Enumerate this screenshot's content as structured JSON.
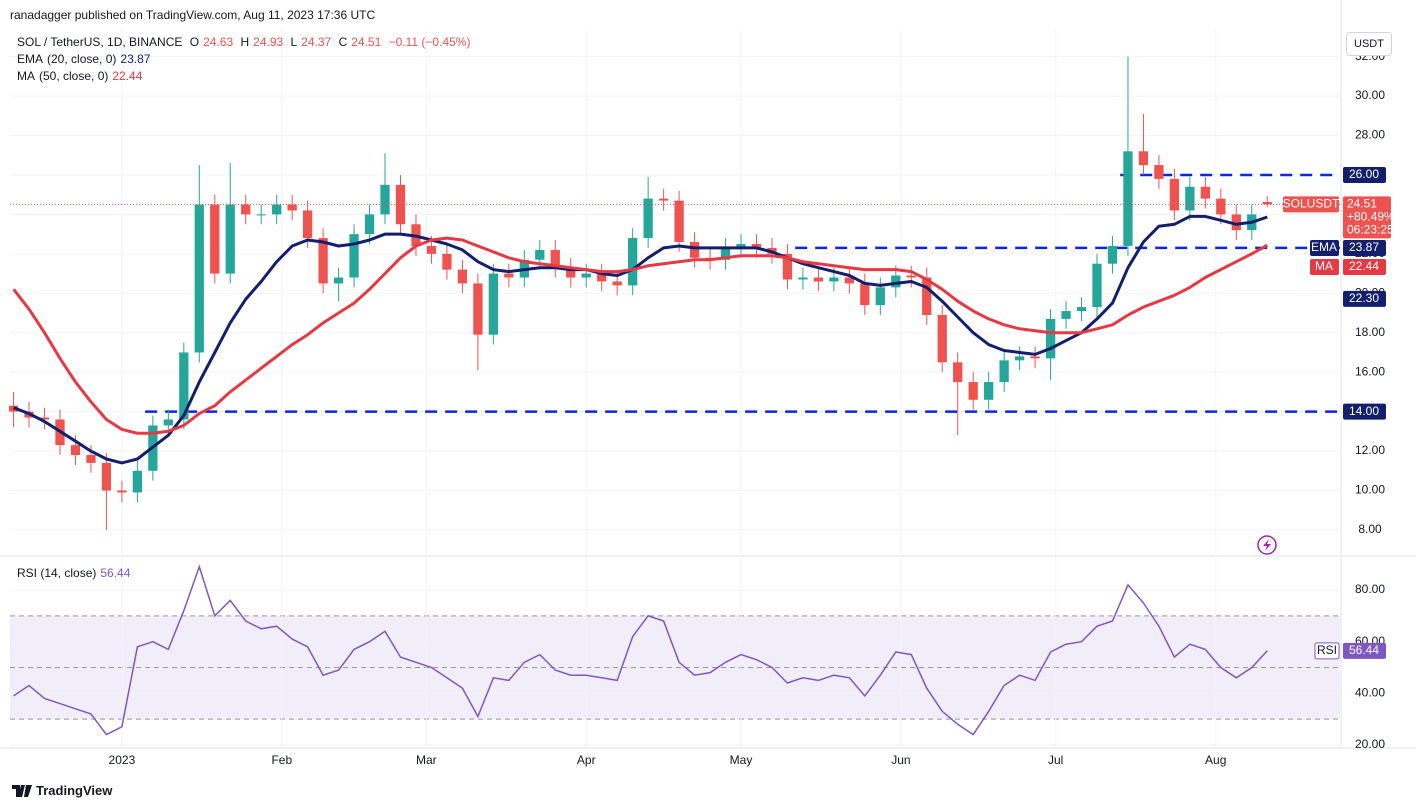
{
  "header": {
    "publisher": "ranadagger published on TradingView.com, Aug 11, 2023 17:36 UTC",
    "currency": "USDT"
  },
  "footer": {
    "brand": "TradingView"
  },
  "chart_data": [
    {
      "type": "candlestick",
      "title": "SOL / TetherUS, 1D, BINANCE",
      "ohlc_labels": [
        "O",
        "H",
        "L",
        "C"
      ],
      "change": "−0.11 (−0.45%)",
      "symbol_tag": "SOLUSDT",
      "pct_change": "+80.49%",
      "countdown": "06:23:25",
      "up_color": "#26a69a",
      "down_color": "#ef5350",
      "open": [
        14.3,
        14.0,
        13.7,
        13.6,
        12.3,
        11.8,
        11.4,
        10.0,
        9.9,
        11.0,
        13.3,
        13.6,
        17.0,
        24.5,
        21.0,
        24.5,
        24.0,
        24.0,
        24.5,
        24.2,
        22.8,
        20.5,
        20.8,
        23.0,
        24.0,
        25.5,
        23.5,
        22.4,
        22.0,
        21.2,
        20.5,
        17.9,
        21.0,
        20.8,
        21.7,
        22.2,
        21.3,
        20.8,
        21.0,
        20.6,
        20.4,
        22.8,
        24.8,
        24.7,
        22.6,
        21.8,
        21.7,
        22.3,
        22.5,
        22.3,
        22.0,
        20.7,
        20.8,
        20.6,
        20.8,
        20.5,
        19.4,
        20.3,
        20.9,
        20.8,
        18.9,
        16.5,
        15.5,
        14.6,
        15.5,
        16.6,
        16.8,
        16.7,
        18.7,
        19.1,
        19.3,
        21.5,
        22.4,
        27.2,
        26.5,
        25.8,
        24.2,
        25.4,
        24.8,
        24.0,
        23.2,
        24.63
      ],
      "high": [
        15.0,
        14.5,
        14.2,
        14.1,
        12.8,
        12.3,
        11.9,
        10.5,
        11.5,
        13.8,
        14.1,
        17.5,
        26.5,
        25.0,
        26.6,
        25.0,
        24.5,
        25.0,
        25.0,
        24.7,
        23.3,
        21.3,
        23.5,
        24.5,
        27.1,
        26.0,
        24.0,
        22.9,
        22.5,
        21.7,
        21.0,
        21.5,
        21.5,
        22.2,
        22.7,
        22.7,
        21.8,
        21.5,
        21.5,
        21.1,
        23.3,
        25.9,
        25.3,
        25.2,
        23.1,
        22.3,
        22.8,
        23.0,
        23.0,
        22.8,
        22.5,
        21.3,
        21.3,
        21.3,
        21.3,
        21.0,
        20.8,
        21.4,
        21.4,
        21.3,
        19.4,
        17.0,
        16.0,
        16.0,
        17.1,
        17.3,
        17.3,
        19.2,
        19.6,
        19.8,
        22.0,
        22.9,
        32.0,
        29.1,
        27.0,
        26.3,
        25.9,
        25.9,
        25.3,
        24.5,
        24.5,
        24.93
      ],
      "low": [
        13.2,
        13.2,
        13.1,
        11.8,
        11.3,
        10.9,
        8.0,
        9.4,
        9.4,
        10.5,
        12.8,
        13.1,
        16.5,
        20.5,
        20.5,
        23.5,
        23.5,
        23.5,
        23.7,
        22.3,
        20.0,
        19.6,
        20.3,
        22.5,
        23.5,
        23.0,
        21.9,
        21.5,
        20.7,
        20.0,
        16.1,
        17.4,
        20.3,
        20.3,
        21.2,
        20.8,
        20.3,
        20.3,
        20.1,
        19.9,
        19.9,
        22.3,
        24.2,
        22.1,
        21.3,
        21.2,
        21.2,
        21.8,
        21.8,
        21.5,
        20.2,
        20.2,
        20.1,
        20.1,
        20.0,
        18.9,
        18.9,
        19.8,
        20.3,
        18.4,
        16.0,
        12.8,
        14.1,
        14.1,
        15.0,
        16.1,
        16.2,
        15.6,
        18.2,
        18.6,
        18.8,
        21.0,
        21.9,
        26.0,
        25.3,
        23.7,
        23.7,
        24.3,
        23.5,
        22.7,
        22.7,
        24.37
      ],
      "close": [
        14.0,
        13.7,
        13.6,
        12.3,
        11.8,
        11.4,
        10.0,
        9.9,
        11.0,
        13.3,
        13.6,
        17.0,
        24.5,
        21.0,
        24.5,
        24.0,
        24.0,
        24.5,
        24.2,
        22.8,
        20.5,
        20.8,
        23.0,
        24.0,
        25.5,
        23.5,
        22.4,
        22.0,
        21.2,
        20.5,
        17.9,
        21.0,
        20.8,
        21.7,
        22.2,
        21.3,
        20.8,
        21.0,
        20.6,
        20.4,
        22.8,
        24.8,
        24.7,
        22.6,
        21.8,
        21.7,
        22.3,
        22.5,
        22.3,
        22.0,
        20.7,
        20.8,
        20.6,
        20.8,
        20.5,
        19.4,
        20.3,
        20.9,
        20.8,
        18.9,
        16.5,
        15.5,
        14.6,
        15.5,
        16.6,
        16.8,
        16.7,
        18.7,
        19.1,
        19.3,
        21.5,
        22.4,
        27.2,
        26.5,
        25.8,
        24.2,
        25.4,
        24.8,
        24.0,
        23.2,
        24.0,
        24.51
      ],
      "overlays": [
        {
          "name": "EMA",
          "params": "(20, close, 0)",
          "color": "#131f6b",
          "values": [
            14.2,
            13.9,
            13.5,
            13.0,
            12.5,
            12.0,
            11.6,
            11.4,
            11.6,
            12.2,
            12.8,
            13.8,
            15.5,
            17.0,
            18.5,
            19.7,
            20.6,
            21.6,
            22.4,
            22.7,
            22.6,
            22.4,
            22.5,
            22.7,
            23.0,
            23.0,
            22.9,
            22.7,
            22.5,
            22.2,
            21.6,
            21.2,
            21.1,
            21.2,
            21.3,
            21.3,
            21.2,
            21.2,
            21.0,
            20.9,
            21.2,
            21.8,
            22.3,
            22.4,
            22.3,
            22.3,
            22.3,
            22.3,
            22.3,
            22.1,
            21.8,
            21.5,
            21.3,
            21.1,
            20.9,
            20.5,
            20.4,
            20.5,
            20.6,
            20.3,
            19.6,
            18.8,
            18.0,
            17.4,
            17.1,
            17.0,
            16.9,
            17.2,
            17.6,
            18.0,
            18.7,
            19.5,
            21.3,
            22.6,
            23.4,
            23.5,
            23.9,
            23.9,
            23.7,
            23.5,
            23.6,
            23.87
          ]
        },
        {
          "name": "MA",
          "params": "(50, close, 0)",
          "color": "#e53944",
          "values": [
            20.2,
            19.2,
            18.0,
            16.7,
            15.5,
            14.5,
            13.6,
            13.1,
            12.9,
            12.9,
            13.0,
            13.3,
            13.9,
            14.3,
            15.0,
            15.6,
            16.2,
            16.8,
            17.4,
            17.9,
            18.5,
            19.0,
            19.5,
            20.2,
            21.0,
            21.8,
            22.4,
            22.7,
            22.8,
            22.7,
            22.4,
            22.1,
            21.8,
            21.6,
            21.5,
            21.4,
            21.3,
            21.2,
            21.1,
            21.1,
            21.2,
            21.4,
            21.5,
            21.6,
            21.7,
            21.7,
            21.8,
            21.9,
            21.9,
            21.9,
            21.8,
            21.6,
            21.5,
            21.4,
            21.3,
            21.2,
            21.2,
            21.2,
            21.1,
            20.7,
            20.2,
            19.6,
            19.1,
            18.7,
            18.4,
            18.2,
            18.1,
            18.0,
            18.0,
            18.0,
            18.2,
            18.4,
            18.9,
            19.3,
            19.6,
            19.9,
            20.3,
            20.8,
            21.2,
            21.6,
            22.0,
            22.44
          ]
        }
      ],
      "levels": [
        {
          "value": 26,
          "label": "26.00",
          "from": 71.5
        },
        {
          "value": 22.3,
          "label": "22.30",
          "from": 50.5
        },
        {
          "value": 14,
          "label": "14.00",
          "from": 8.5
        }
      ],
      "level_color": "#0d27d6",
      "ylim": [
        6.73,
        33.35
      ],
      "yticks": [
        {
          "value": 8,
          "label": "8.00"
        },
        {
          "value": 10,
          "label": "10.00"
        },
        {
          "value": 12,
          "label": "12.00"
        },
        {
          "value": 14,
          "label": "14.00"
        },
        {
          "value": 16,
          "label": "16.00"
        },
        {
          "value": 18,
          "label": "18.00"
        },
        {
          "value": 20,
          "label": "20.00"
        },
        {
          "value": 22,
          "label": "22.00"
        },
        {
          "value": 24,
          "label": "24.00"
        },
        {
          "value": 26,
          "label": "26.00"
        },
        {
          "value": 28,
          "label": "28.00"
        },
        {
          "value": 30,
          "label": "30.00"
        },
        {
          "value": 32,
          "label": "32.00"
        }
      ],
      "xlim": [
        -0.23,
        85.7
      ],
      "xticks": [
        {
          "value": 7,
          "label": "2023"
        },
        {
          "value": 17.33,
          "label": "Feb"
        },
        {
          "value": 26.67,
          "label": "Mar"
        },
        {
          "value": 37,
          "label": "Apr"
        },
        {
          "value": 47,
          "label": "May"
        },
        {
          "value": 57.33,
          "label": "Jun"
        },
        {
          "value": 67.33,
          "label": "Jul"
        },
        {
          "value": 77.67,
          "label": "Aug"
        }
      ],
      "grid": true
    },
    {
      "type": "line",
      "title": "RSI (14, close)",
      "band": [
        30,
        70
      ],
      "midline": 50,
      "series": [
        {
          "name": "RSI",
          "color": "#7e57c2",
          "values": [
            39,
            43,
            38,
            36,
            34,
            32,
            24,
            27,
            58,
            60,
            57,
            72,
            89,
            70,
            76,
            68,
            65,
            66,
            61,
            58,
            47,
            49,
            57,
            60,
            64,
            54,
            52,
            50,
            46,
            42,
            31,
            46,
            45,
            52,
            55,
            49,
            47,
            47,
            46,
            45,
            62,
            70,
            68,
            52,
            47,
            48,
            52,
            55,
            53,
            50,
            44,
            46,
            45,
            47,
            46,
            39,
            47,
            56,
            55,
            42,
            33,
            28,
            24,
            33,
            43,
            47,
            45,
            56,
            59,
            60,
            66,
            68,
            82,
            75,
            66,
            54,
            59,
            57,
            50,
            46,
            50,
            56.44
          ]
        }
      ],
      "ylim": [
        18.8,
        92.8
      ],
      "yticks": [
        {
          "value": 20,
          "label": "20.00"
        },
        {
          "value": 40,
          "label": "40.00"
        },
        {
          "value": 60,
          "label": "60.00"
        },
        {
          "value": 80,
          "label": "80.00"
        }
      ],
      "grid": true
    }
  ]
}
